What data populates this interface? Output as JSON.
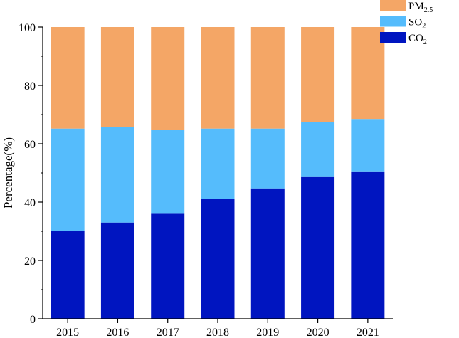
{
  "chart_data": {
    "type": "bar",
    "stacked": true,
    "categories": [
      "2015",
      "2016",
      "2017",
      "2018",
      "2019",
      "2020",
      "2021"
    ],
    "series": [
      {
        "name": "CO",
        "sub": "2",
        "color": "#0015c0",
        "values": [
          30,
          33,
          36,
          41,
          44.7,
          48.6,
          50.3
        ]
      },
      {
        "name": "SO",
        "sub": "2",
        "color": "#55bcfc",
        "values": [
          35.2,
          32.8,
          28.7,
          24.2,
          20.5,
          18.8,
          18.2
        ]
      },
      {
        "name": "PM",
        "sub": "2.5",
        "color": "#f4a666",
        "values": [
          34.8,
          34.2,
          35.3,
          34.8,
          34.8,
          32.6,
          31.5
        ]
      }
    ],
    "title": "",
    "xlabel": "",
    "ylabel": "Percentage(%)",
    "ylim": [
      0,
      100
    ],
    "yticks": [
      0,
      20,
      40,
      60,
      80,
      100
    ],
    "grid": false,
    "legend_position": "top-right"
  }
}
